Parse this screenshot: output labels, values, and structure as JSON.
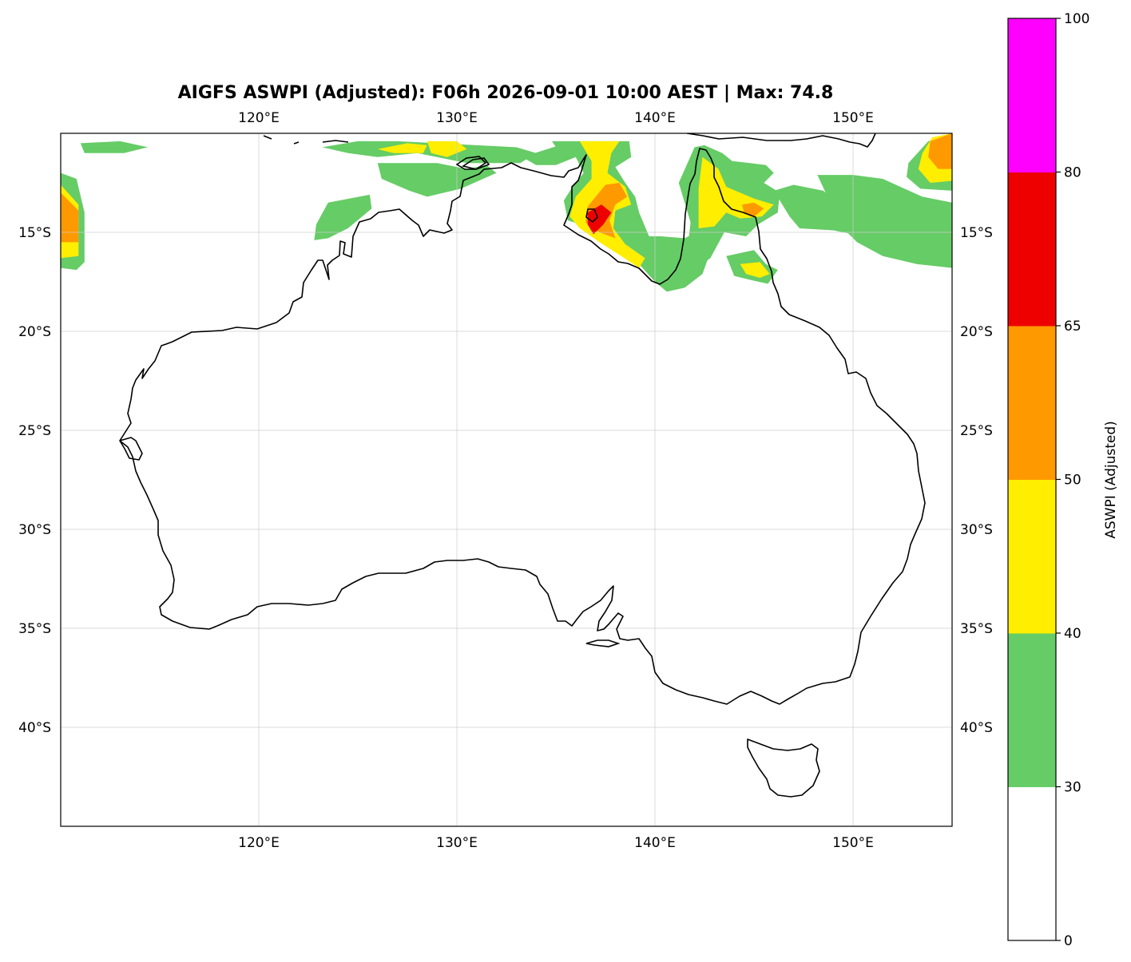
{
  "title": "AIGFS ASWPI (Adjusted): F06h 2026-09-01 10:00 AEST | Max: 74.8",
  "map": {
    "projection": "PlateCarree",
    "lon_range": [
      110,
      155
    ],
    "lat_range": [
      -45,
      -10
    ],
    "lon_ticks": [
      {
        "value": 120,
        "label": "120°E"
      },
      {
        "value": 130,
        "label": "130°E"
      },
      {
        "value": 140,
        "label": "140°E"
      },
      {
        "value": 150,
        "label": "150°E"
      }
    ],
    "lat_ticks": [
      {
        "value": -15,
        "label": "15°S"
      },
      {
        "value": -20,
        "label": "20°S"
      },
      {
        "value": -25,
        "label": "25°S"
      },
      {
        "value": -30,
        "label": "30°S"
      },
      {
        "value": -35,
        "label": "35°S"
      },
      {
        "value": -40,
        "label": "40°S"
      }
    ],
    "gridlines": true,
    "coastline_color": "#000000"
  },
  "colorbar": {
    "label": "ASWPI (Adjusted)",
    "levels": [
      0,
      30,
      40,
      50,
      65,
      80,
      100
    ],
    "tick_labels": [
      "0",
      "30",
      "40",
      "50",
      "65",
      "80",
      "100"
    ],
    "colors": [
      "#ffffff",
      "#66cc66",
      "#ffee00",
      "#ff9900",
      "#ee0000",
      "#ff00ff"
    ],
    "placement": "right"
  },
  "chart_data": {
    "type": "heatmap",
    "field": "ASWPI (Adjusted)",
    "max": 74.8,
    "regions": [
      {
        "level": 30,
        "points": [
          [
            110,
            -12.0
          ],
          [
            110.8,
            -12.3
          ],
          [
            111.2,
            -14.0
          ],
          [
            111.2,
            -16.5
          ],
          [
            110.8,
            -16.9
          ],
          [
            110,
            -16.8
          ]
        ]
      },
      {
        "level": 40,
        "points": [
          [
            110,
            -12.6
          ],
          [
            110.9,
            -13.6
          ],
          [
            110.9,
            -16.2
          ],
          [
            110,
            -16.3
          ]
        ]
      },
      {
        "level": 50,
        "points": [
          [
            110,
            -13.0
          ],
          [
            110.9,
            -13.9
          ],
          [
            110.9,
            -15.5
          ],
          [
            110,
            -15.5
          ]
        ]
      },
      {
        "level": 30,
        "points": [
          [
            111.0,
            -10.5
          ],
          [
            113.0,
            -10.4
          ],
          [
            114.4,
            -10.7
          ],
          [
            113.2,
            -11.0
          ],
          [
            111.2,
            -11.0
          ]
        ]
      },
      {
        "level": 30,
        "points": [
          [
            123.2,
            -10.7
          ],
          [
            125.0,
            -10.4
          ],
          [
            127.0,
            -10.4
          ],
          [
            129.0,
            -10.5
          ],
          [
            131.0,
            -10.6
          ],
          [
            133.0,
            -10.7
          ],
          [
            134.0,
            -11.0
          ],
          [
            133.2,
            -11.5
          ],
          [
            130.5,
            -11.5
          ],
          [
            128.0,
            -11.0
          ],
          [
            126.0,
            -11.2
          ],
          [
            124.5,
            -11.0
          ]
        ]
      },
      {
        "level": 40,
        "points": [
          [
            126.0,
            -10.8
          ],
          [
            127.5,
            -10.5
          ],
          [
            128.5,
            -10.6
          ],
          [
            128.3,
            -11.0
          ],
          [
            126.8,
            -11.0
          ]
        ]
      },
      {
        "level": 40,
        "points": [
          [
            128.5,
            -10.4
          ],
          [
            130.0,
            -10.4
          ],
          [
            130.5,
            -10.8
          ],
          [
            129.5,
            -11.2
          ],
          [
            128.7,
            -11.0
          ]
        ]
      },
      {
        "level": 30,
        "points": [
          [
            126.0,
            -11.5
          ],
          [
            129.0,
            -11.5
          ],
          [
            130.5,
            -11.8
          ],
          [
            131.5,
            -11.6
          ],
          [
            132.0,
            -12.0
          ],
          [
            130.2,
            -12.8
          ],
          [
            128.5,
            -13.2
          ],
          [
            127.6,
            -12.9
          ],
          [
            126.2,
            -12.3
          ]
        ]
      },
      {
        "level": 30,
        "points": [
          [
            123.5,
            -13.5
          ],
          [
            125.6,
            -13.1
          ],
          [
            125.7,
            -13.8
          ],
          [
            124.5,
            -14.8
          ],
          [
            123.5,
            -15.3
          ],
          [
            122.8,
            -15.4
          ],
          [
            122.9,
            -14.6
          ]
        ]
      },
      {
        "level": 30,
        "points": [
          [
            133.3,
            -11.2
          ],
          [
            135.5,
            -10.5
          ],
          [
            136.2,
            -10.4
          ],
          [
            136.5,
            -11.0
          ],
          [
            135.0,
            -11.6
          ],
          [
            134.0,
            -11.6
          ]
        ]
      },
      {
        "level": 30,
        "points": [
          [
            134.8,
            -10.4
          ],
          [
            136.5,
            -10.4
          ],
          [
            138.7,
            -10.4
          ],
          [
            138.8,
            -11.2
          ],
          [
            138.0,
            -11.7
          ],
          [
            138.5,
            -12.5
          ],
          [
            139.0,
            -13.2
          ],
          [
            139.2,
            -14.0
          ],
          [
            139.7,
            -15.2
          ],
          [
            140.3,
            -15.2
          ],
          [
            141.5,
            -15.3
          ],
          [
            142.5,
            -14.8
          ],
          [
            143.3,
            -14.5
          ],
          [
            142.8,
            -16.0
          ],
          [
            142.4,
            -17.1
          ],
          [
            141.5,
            -17.8
          ],
          [
            140.6,
            -18.0
          ],
          [
            140.0,
            -17.5
          ],
          [
            139.2,
            -16.6
          ],
          [
            138.0,
            -15.7
          ],
          [
            136.9,
            -14.8
          ],
          [
            135.6,
            -14.4
          ],
          [
            135.4,
            -13.4
          ],
          [
            135.9,
            -12.6
          ],
          [
            136.4,
            -12.0
          ],
          [
            136.0,
            -11.2
          ],
          [
            135.2,
            -11.0
          ]
        ]
      },
      {
        "level": 40,
        "points": [
          [
            136.2,
            -10.4
          ],
          [
            138.2,
            -10.4
          ],
          [
            137.8,
            -11.0
          ],
          [
            137.6,
            -12.0
          ],
          [
            138.5,
            -12.7
          ],
          [
            138.8,
            -13.6
          ],
          [
            138.0,
            -13.9
          ],
          [
            137.9,
            -14.8
          ],
          [
            138.5,
            -15.6
          ],
          [
            139.5,
            -16.3
          ],
          [
            139.2,
            -16.8
          ],
          [
            138.3,
            -16.2
          ],
          [
            137.2,
            -15.5
          ],
          [
            136.2,
            -14.8
          ],
          [
            135.7,
            -14.2
          ],
          [
            136.0,
            -13.2
          ],
          [
            136.8,
            -12.3
          ],
          [
            136.8,
            -11.4
          ]
        ]
      },
      {
        "level": 50,
        "points": [
          [
            136.6,
            -13.7
          ],
          [
            137.5,
            -12.6
          ],
          [
            138.2,
            -12.5
          ],
          [
            138.6,
            -13.2
          ],
          [
            138.0,
            -13.6
          ],
          [
            137.7,
            -14.4
          ],
          [
            138.0,
            -15.3
          ],
          [
            137.2,
            -15.0
          ],
          [
            136.5,
            -14.5
          ]
        ]
      },
      {
        "level": 65,
        "points": [
          [
            136.6,
            -14.0
          ],
          [
            137.3,
            -13.6
          ],
          [
            137.8,
            -14.0
          ],
          [
            137.4,
            -14.6
          ],
          [
            136.9,
            -15.1
          ],
          [
            136.6,
            -14.6
          ]
        ]
      },
      {
        "level": 30,
        "points": [
          [
            141.2,
            -12.5
          ],
          [
            142.0,
            -10.7
          ],
          [
            142.5,
            -10.6
          ],
          [
            143.4,
            -11.0
          ],
          [
            143.9,
            -11.4
          ],
          [
            144.8,
            -11.5
          ],
          [
            145.6,
            -11.6
          ],
          [
            146.0,
            -12.0
          ],
          [
            145.5,
            -12.5
          ],
          [
            146.3,
            -13.0
          ],
          [
            146.2,
            -14.0
          ],
          [
            145.2,
            -14.6
          ],
          [
            144.6,
            -15.2
          ],
          [
            143.5,
            -15.0
          ],
          [
            142.8,
            -16.3
          ],
          [
            142.0,
            -16.9
          ],
          [
            141.6,
            -16.2
          ],
          [
            141.8,
            -14.5
          ]
        ]
      },
      {
        "level": 40,
        "points": [
          [
            142.2,
            -12.8
          ],
          [
            142.4,
            -11.2
          ],
          [
            143.2,
            -11.8
          ],
          [
            143.6,
            -12.7
          ],
          [
            145.0,
            -13.3
          ],
          [
            146.0,
            -13.6
          ],
          [
            145.4,
            -14.2
          ],
          [
            144.3,
            -14.3
          ],
          [
            143.6,
            -14.0
          ],
          [
            143.0,
            -14.7
          ],
          [
            142.2,
            -14.8
          ]
        ]
      },
      {
        "level": 50,
        "points": [
          [
            144.4,
            -13.6
          ],
          [
            145.0,
            -13.5
          ],
          [
            145.5,
            -13.8
          ],
          [
            145.0,
            -14.2
          ],
          [
            144.5,
            -14.0
          ]
        ]
      },
      {
        "level": 30,
        "points": [
          [
            143.6,
            -16.2
          ],
          [
            145.0,
            -15.9
          ],
          [
            145.6,
            -16.6
          ],
          [
            146.2,
            -16.9
          ],
          [
            145.7,
            -17.6
          ],
          [
            144.8,
            -17.4
          ],
          [
            144.0,
            -17.2
          ]
        ]
      },
      {
        "level": 40,
        "points": [
          [
            144.3,
            -16.6
          ],
          [
            145.3,
            -16.5
          ],
          [
            145.8,
            -17.1
          ],
          [
            145.3,
            -17.3
          ],
          [
            144.6,
            -17.1
          ]
        ]
      },
      {
        "level": 30,
        "points": [
          [
            146.0,
            -12.9
          ],
          [
            147.0,
            -12.6
          ],
          [
            148.5,
            -12.9
          ],
          [
            149.5,
            -13.8
          ],
          [
            150.5,
            -14.3
          ],
          [
            151.2,
            -14.9
          ],
          [
            150.5,
            -15.2
          ],
          [
            149.0,
            -14.9
          ],
          [
            147.3,
            -14.8
          ],
          [
            146.8,
            -14.2
          ]
        ]
      },
      {
        "level": 30,
        "points": [
          [
            148.2,
            -12.1
          ],
          [
            150.0,
            -12.1
          ],
          [
            151.5,
            -12.3
          ],
          [
            152.6,
            -12.8
          ],
          [
            153.5,
            -13.2
          ],
          [
            155,
            -13.5
          ],
          [
            155,
            -16.8
          ],
          [
            153.2,
            -16.6
          ],
          [
            151.5,
            -16.2
          ],
          [
            150.2,
            -15.5
          ],
          [
            149.2,
            -14.5
          ],
          [
            148.8,
            -13.4
          ]
        ]
      },
      {
        "level": 30,
        "points": [
          [
            152.8,
            -11.5
          ],
          [
            153.8,
            -10.4
          ],
          [
            155,
            -10.0
          ],
          [
            155,
            -12.9
          ],
          [
            153.4,
            -12.8
          ],
          [
            152.7,
            -12.2
          ]
        ]
      },
      {
        "level": 40,
        "points": [
          [
            153.5,
            -11.0
          ],
          [
            154.0,
            -10.2
          ],
          [
            155,
            -10.0
          ],
          [
            155,
            -12.4
          ],
          [
            153.9,
            -12.5
          ],
          [
            153.3,
            -11.8
          ]
        ]
      },
      {
        "level": 50,
        "points": [
          [
            153.9,
            -10.4
          ],
          [
            155,
            -10.0
          ],
          [
            155,
            -11.8
          ],
          [
            154.3,
            -11.8
          ],
          [
            153.8,
            -11.2
          ]
        ]
      }
    ]
  }
}
